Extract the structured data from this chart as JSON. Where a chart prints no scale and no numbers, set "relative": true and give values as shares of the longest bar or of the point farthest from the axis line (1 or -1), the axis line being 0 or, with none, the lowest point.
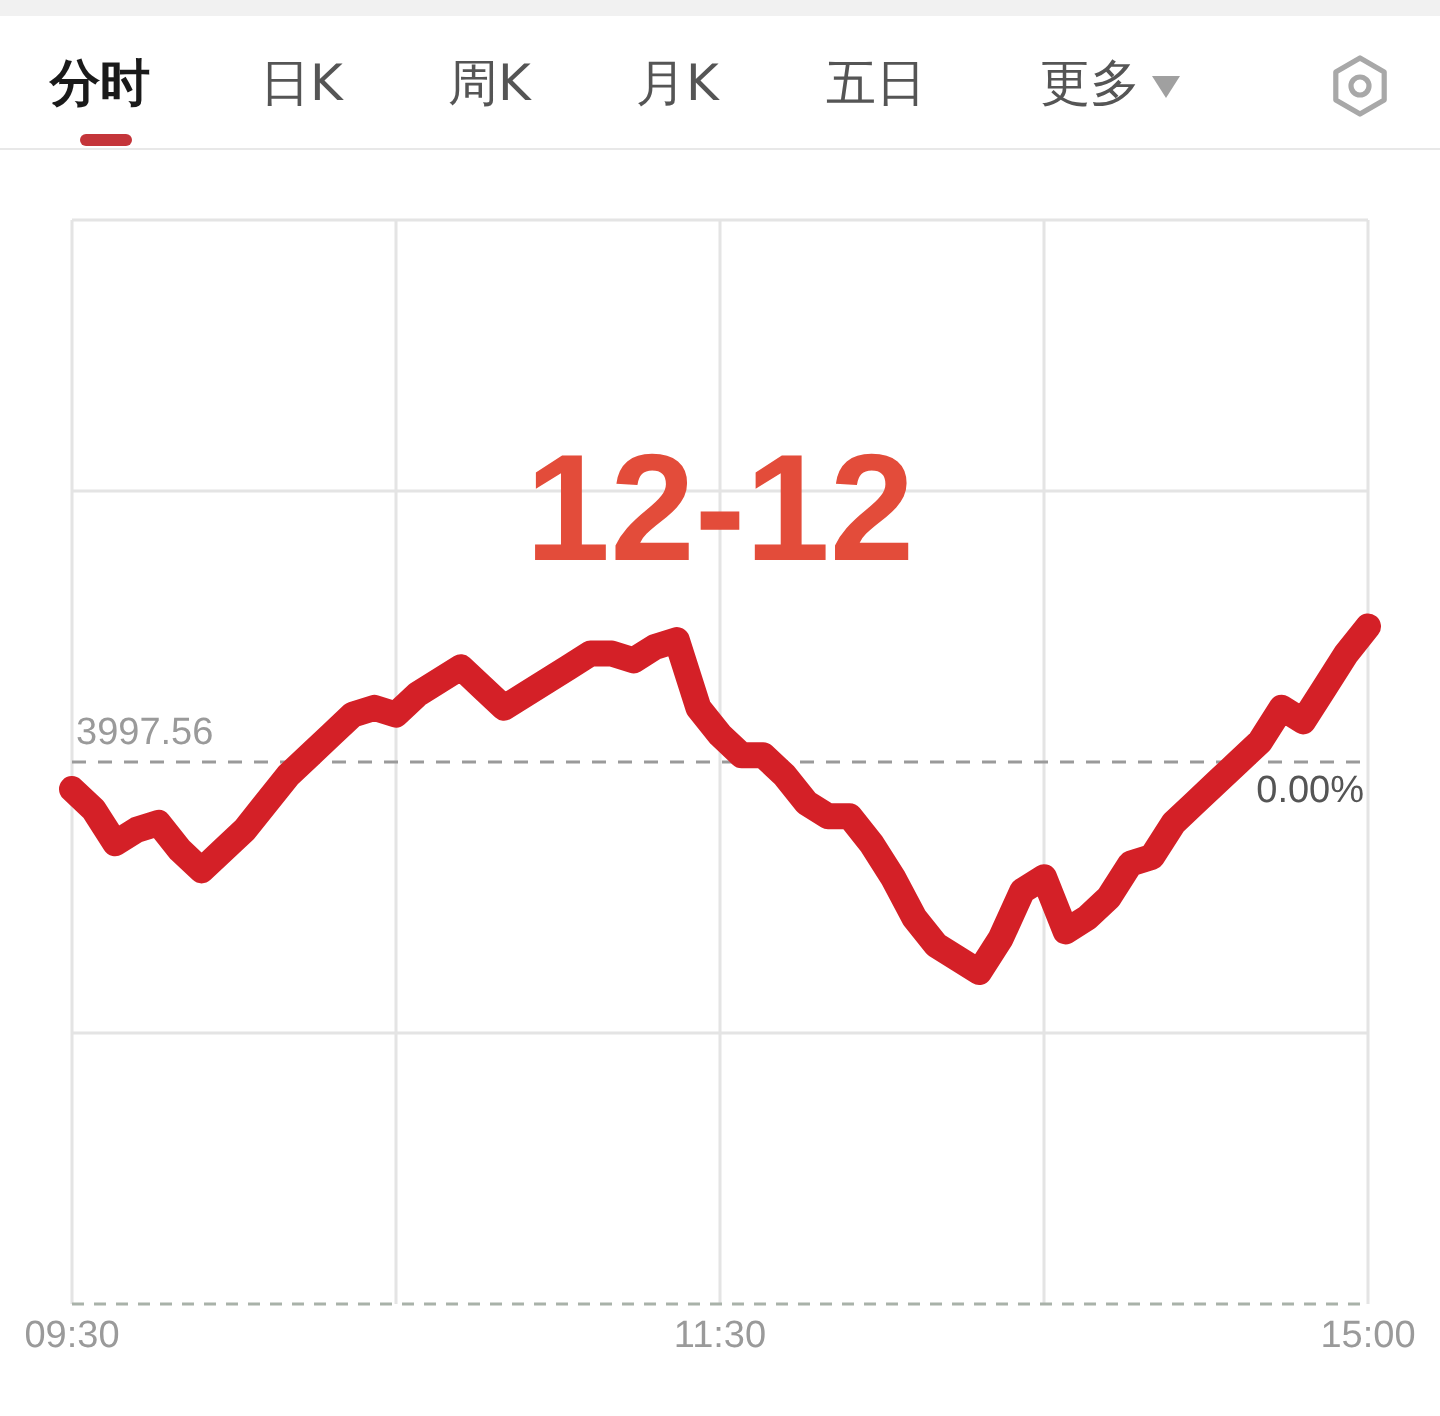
{
  "chart_data": {
    "type": "line",
    "title": "12-12",
    "annotations": [
      "分时",
      "日K",
      "周K",
      "月K",
      "五日",
      "更多",
      {
        "text": "3997.56",
        "x": "09:30",
        "y": 0.8
      },
      {
        "text": "0.00%",
        "x": "15:00",
        "y": 0.8
      }
    ],
    "categories": [
      "09:30",
      null,
      null,
      null,
      null,
      null,
      null,
      null,
      null,
      null,
      null,
      null,
      null,
      null,
      null,
      null,
      null,
      null,
      null,
      null,
      null,
      null,
      null,
      null,
      null,
      null,
      null,
      null,
      null,
      null,
      "11:30",
      null,
      null,
      null,
      null,
      null,
      null,
      null,
      null,
      null,
      null,
      null,
      null,
      null,
      null,
      null,
      null,
      null,
      null,
      null,
      null,
      null,
      null,
      null,
      null,
      null,
      null,
      null,
      null,
      null,
      "15:00"
    ],
    "values": [
      0.76,
      0.73,
      0.68,
      0.7,
      0.71,
      0.67,
      0.64,
      0.67,
      0.7,
      0.74,
      0.78,
      0.81,
      0.84,
      0.87,
      0.88,
      0.87,
      0.9,
      0.92,
      0.94,
      0.91,
      0.88,
      0.9,
      0.92,
      0.94,
      0.96,
      0.96,
      0.95,
      0.97,
      0.98,
      0.88,
      0.84,
      0.81,
      0.81,
      0.78,
      0.74,
      0.72,
      0.72,
      0.68,
      0.63,
      0.57,
      0.53,
      0.51,
      0.49,
      0.54,
      0.61,
      0.63,
      0.55,
      0.57,
      0.6,
      0.65,
      0.66,
      0.71,
      0.74,
      0.77,
      0.8,
      0.83,
      0.88,
      0.86,
      0.91,
      0.96,
      1
    ],
    "color": "#d42027",
    "relative": true,
    "ref_lines": [
      {
        "axis": "y",
        "value": 0.8,
        "color": "#9a9a9a",
        "line_style": "dashed"
      }
    ],
    "grid": true,
    "line_style": "solid"
  }
}
